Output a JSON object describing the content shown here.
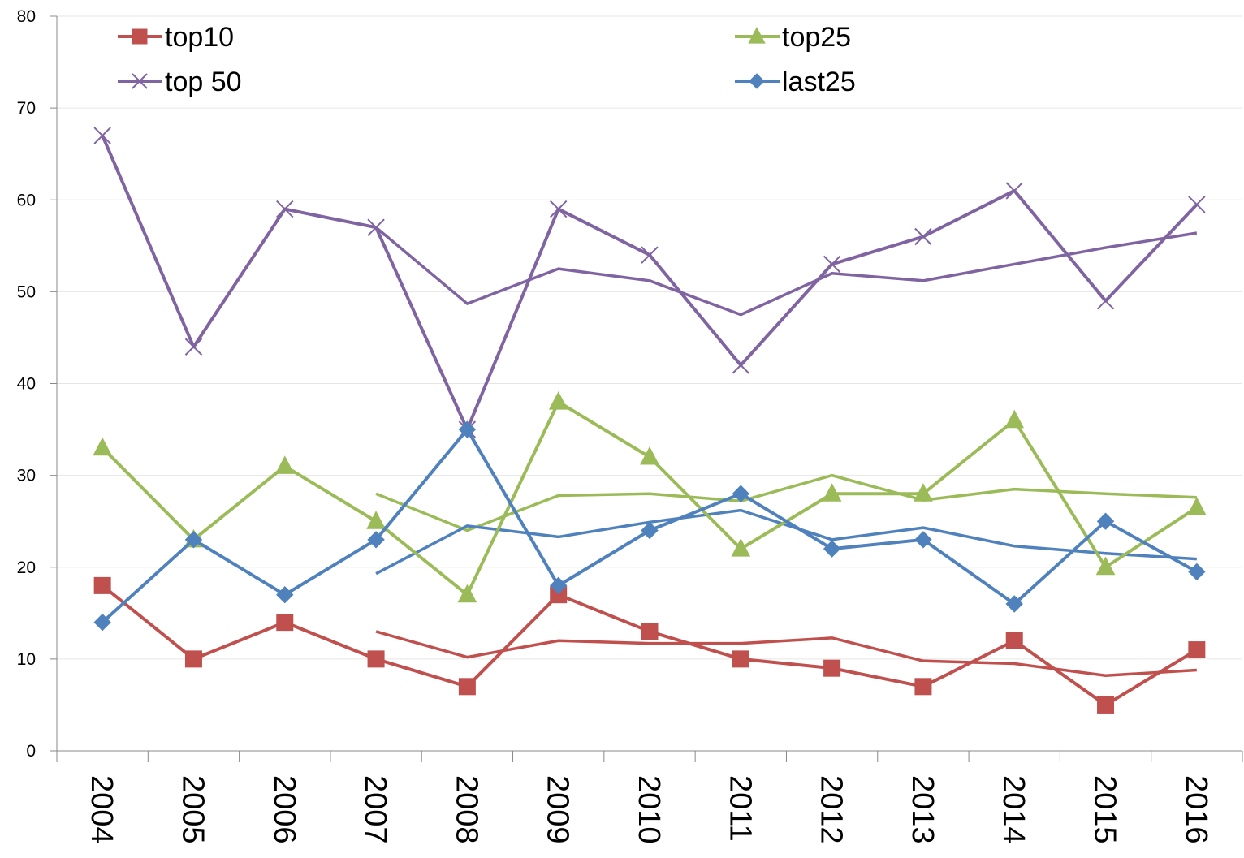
{
  "chart_data": {
    "type": "line",
    "categories": [
      "2004",
      "2005",
      "2006",
      "2007",
      "2008",
      "2009",
      "2010",
      "2011",
      "2012",
      "2013",
      "2014",
      "2015",
      "2016"
    ],
    "series": [
      {
        "name": "top10",
        "color": "#c0504d",
        "marker": "square",
        "values": [
          18,
          10,
          14,
          10,
          7,
          17,
          13,
          10,
          9,
          7,
          12,
          5,
          11
        ]
      },
      {
        "name": "top25",
        "color": "#9bbb59",
        "marker": "triangle",
        "values": [
          33,
          23,
          31,
          25,
          17,
          38,
          32,
          22,
          28,
          28,
          36,
          20,
          26.5
        ]
      },
      {
        "name": "top 50",
        "color": "#8064a2",
        "marker": "x",
        "values": [
          67,
          44,
          59,
          57,
          35,
          59,
          54,
          42,
          53,
          56,
          61,
          49,
          59.5
        ]
      },
      {
        "name": "last25",
        "color": "#4f81bd",
        "marker": "diamond",
        "values": [
          14,
          23,
          17,
          23,
          35,
          18,
          24,
          28,
          22,
          23,
          16,
          25,
          19.5
        ]
      }
    ],
    "trendlines": [
      {
        "color": "#c0504d",
        "values": [
          null,
          null,
          null,
          13,
          10.2,
          12,
          11.7,
          11.7,
          12.3,
          9.8,
          9.5,
          8.2,
          8.8
        ]
      },
      {
        "color": "#9bbb59",
        "values": [
          null,
          null,
          null,
          28,
          24,
          27.8,
          28,
          27.2,
          30,
          27.3,
          28.5,
          28,
          27.6
        ]
      },
      {
        "color": "#8064a2",
        "values": [
          null,
          null,
          null,
          57,
          48.7,
          52.5,
          51.2,
          47.5,
          52,
          51.2,
          53,
          54.8,
          56.4
        ]
      },
      {
        "color": "#4f81bd",
        "values": [
          null,
          null,
          null,
          19.3,
          24.5,
          23.3,
          24.9,
          26.2,
          23,
          24.3,
          22.3,
          21.5,
          20.9
        ]
      }
    ],
    "ylim": [
      0,
      80
    ],
    "yticks": [
      0,
      10,
      20,
      30,
      40,
      50,
      60,
      70,
      80
    ],
    "grid": true,
    "legend": "top"
  }
}
